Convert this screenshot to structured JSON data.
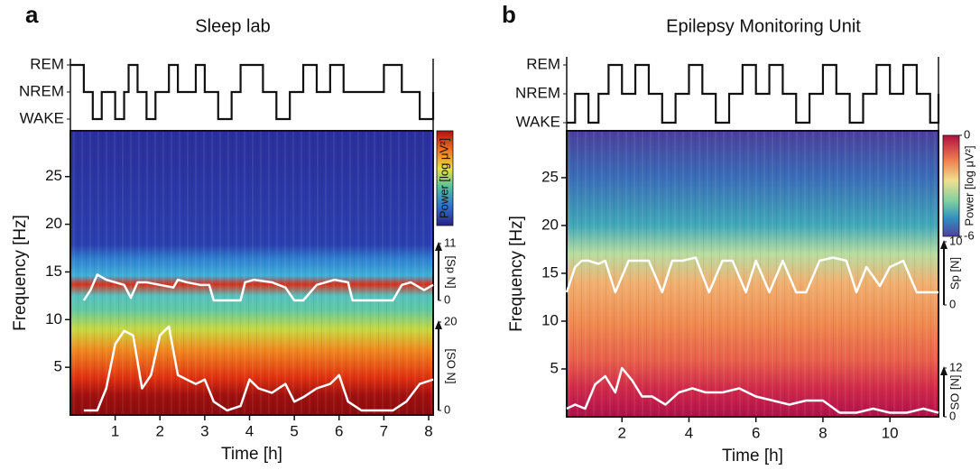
{
  "chart_data": [
    {
      "type": "spectrogram",
      "panel_label": "a",
      "title": "Sleep lab",
      "x_label": "Time [h]",
      "y_label": "Frequency [Hz]",
      "xlim": [
        0,
        8.1
      ],
      "xticks": [
        1,
        2,
        3,
        4,
        5,
        6,
        7,
        8
      ],
      "ylim": [
        0,
        29.8
      ],
      "yticks": [
        5,
        10,
        15,
        20,
        25
      ],
      "colorbar": {
        "label": "Power [log μV²]"
      },
      "hypnogram": {
        "ylim": [
          0,
          2
        ],
        "yticks": [
          {
            "value": 2,
            "label": "REM"
          },
          {
            "value": 1,
            "label": "NREM"
          },
          {
            "value": 0,
            "label": "WAKE"
          }
        ],
        "x": [
          0.0,
          0.3,
          0.5,
          0.7,
          1.0,
          1.2,
          1.3,
          1.5,
          1.7,
          1.9,
          2.2,
          2.4,
          2.8,
          3.0,
          3.3,
          3.6,
          3.8,
          4.3,
          4.6,
          4.9,
          5.2,
          5.5,
          5.8,
          6.1,
          6.5,
          7.0,
          7.4,
          7.8,
          8.1
        ],
        "values": [
          2,
          1,
          0,
          1,
          0,
          1,
          2,
          1,
          0,
          1,
          2,
          1,
          2,
          1,
          0,
          1,
          2,
          1,
          0,
          1,
          2,
          1,
          2,
          1,
          1,
          2,
          1,
          0,
          1
        ]
      },
      "spindles": {
        "label": "[Sp N]",
        "ylim": [
          0,
          11
        ],
        "yticks": [
          0,
          11
        ],
        "x": [
          0.3,
          0.45,
          0.6,
          0.8,
          1.0,
          1.2,
          1.35,
          1.5,
          1.7,
          2.0,
          2.3,
          2.4,
          2.6,
          2.9,
          3.1,
          3.2,
          3.5,
          3.8,
          3.9,
          4.1,
          4.5,
          4.8,
          5.0,
          5.2,
          5.5,
          5.9,
          6.2,
          6.3,
          6.5,
          7.0,
          7.2,
          7.4,
          7.6,
          7.9,
          8.1
        ],
        "values": [
          0,
          2,
          5,
          4,
          3.5,
          3,
          0.5,
          3.5,
          3.5,
          3,
          2.5,
          4,
          3.5,
          3,
          3,
          0,
          0,
          0,
          3.5,
          4,
          3.5,
          2.5,
          0,
          0,
          3,
          4,
          3.5,
          0,
          0,
          0,
          0,
          3,
          3.5,
          2,
          3
        ]
      },
      "slow_oscillations": {
        "label": "[SO N]",
        "ylim": [
          0,
          20
        ],
        "yticks": [
          0,
          20
        ],
        "x": [
          0.3,
          0.6,
          0.8,
          1.0,
          1.2,
          1.4,
          1.6,
          1.8,
          2.0,
          2.2,
          2.4,
          2.6,
          2.8,
          3.0,
          3.2,
          3.5,
          3.8,
          4.0,
          4.2,
          4.5,
          4.8,
          5.0,
          5.2,
          5.5,
          5.8,
          6.0,
          6.2,
          6.5,
          6.8,
          7.0,
          7.2,
          7.5,
          7.8,
          8.1
        ],
        "values": [
          0,
          0,
          5,
          15,
          18,
          17,
          5,
          8,
          17,
          19,
          8,
          7,
          6,
          7,
          2,
          0,
          1,
          7,
          5,
          4,
          6,
          2,
          3,
          5,
          6,
          8,
          2,
          0,
          0,
          0,
          0,
          2,
          6,
          7
        ]
      }
    },
    {
      "type": "spectrogram",
      "panel_label": "b",
      "title": "Epilepsy Monitoring Unit",
      "x_label": "Time [h]",
      "y_label": "Frequency [Hz]",
      "xlim": [
        0.35,
        11.45
      ],
      "xticks": [
        2,
        4,
        6,
        8,
        10
      ],
      "ylim": [
        0,
        29.9
      ],
      "yticks": [
        5,
        10,
        15,
        20,
        25
      ],
      "colorbar": {
        "label": "Power [log μV²]",
        "clim": [
          -6,
          0
        ],
        "ticks": [
          0,
          -6
        ]
      },
      "hypnogram": {
        "ylim": [
          0,
          2
        ],
        "yticks": [
          {
            "value": 2,
            "label": "REM"
          },
          {
            "value": 1,
            "label": "NREM"
          },
          {
            "value": 0,
            "label": "WAKE"
          }
        ],
        "x": [
          0.35,
          0.6,
          1.0,
          1.3,
          1.6,
          2.0,
          2.4,
          2.8,
          3.2,
          3.6,
          4.0,
          4.4,
          4.8,
          5.2,
          5.6,
          6.0,
          6.4,
          6.8,
          7.2,
          7.6,
          8.0,
          8.4,
          8.8,
          9.2,
          9.6,
          10.0,
          10.4,
          10.8,
          11.2,
          11.45
        ],
        "values": [
          0,
          1,
          0,
          1,
          2,
          1,
          2,
          1,
          0,
          1,
          2,
          1,
          0,
          1,
          2,
          1,
          2,
          1,
          0,
          1,
          2,
          1,
          0,
          1,
          2,
          1,
          2,
          1,
          0,
          1
        ]
      },
      "spindles": {
        "label": "Sp [N]",
        "ylim": [
          0,
          10
        ],
        "yticks": [
          0,
          10
        ],
        "x": [
          0.35,
          0.6,
          0.8,
          1.0,
          1.3,
          1.5,
          1.8,
          2.2,
          2.5,
          2.8,
          3.2,
          3.5,
          3.8,
          4.2,
          4.6,
          5.0,
          5.3,
          5.7,
          6.0,
          6.4,
          6.8,
          7.2,
          7.5,
          7.9,
          8.3,
          8.7,
          9.0,
          9.3,
          9.7,
          10.0,
          10.4,
          10.8,
          11.2,
          11.45
        ],
        "values": [
          2,
          6,
          7,
          7,
          6.5,
          7,
          2,
          7,
          7,
          7,
          2,
          7,
          7,
          7.5,
          2,
          7,
          7,
          2,
          7,
          2,
          7,
          2,
          2,
          7,
          7.5,
          7,
          2,
          6,
          3,
          6,
          7,
          2,
          2,
          2
        ]
      },
      "slow_oscillations": {
        "label": "SO [N]",
        "ylim": [
          0,
          12
        ],
        "yticks": [
          0,
          12
        ],
        "x": [
          0.35,
          0.6,
          0.9,
          1.2,
          1.5,
          1.8,
          2.0,
          2.3,
          2.6,
          2.9,
          3.3,
          3.7,
          4.1,
          4.5,
          5.0,
          5.5,
          6.0,
          6.5,
          7.0,
          7.5,
          8.0,
          8.5,
          9.0,
          9.5,
          10.0,
          10.5,
          11.0,
          11.45
        ],
        "values": [
          2,
          3,
          2,
          8,
          10,
          6,
          12,
          9,
          5,
          5,
          3,
          6,
          7,
          6,
          6,
          7,
          5,
          4,
          3,
          4,
          4,
          1,
          1,
          2,
          1,
          1,
          2,
          1
        ]
      }
    }
  ]
}
